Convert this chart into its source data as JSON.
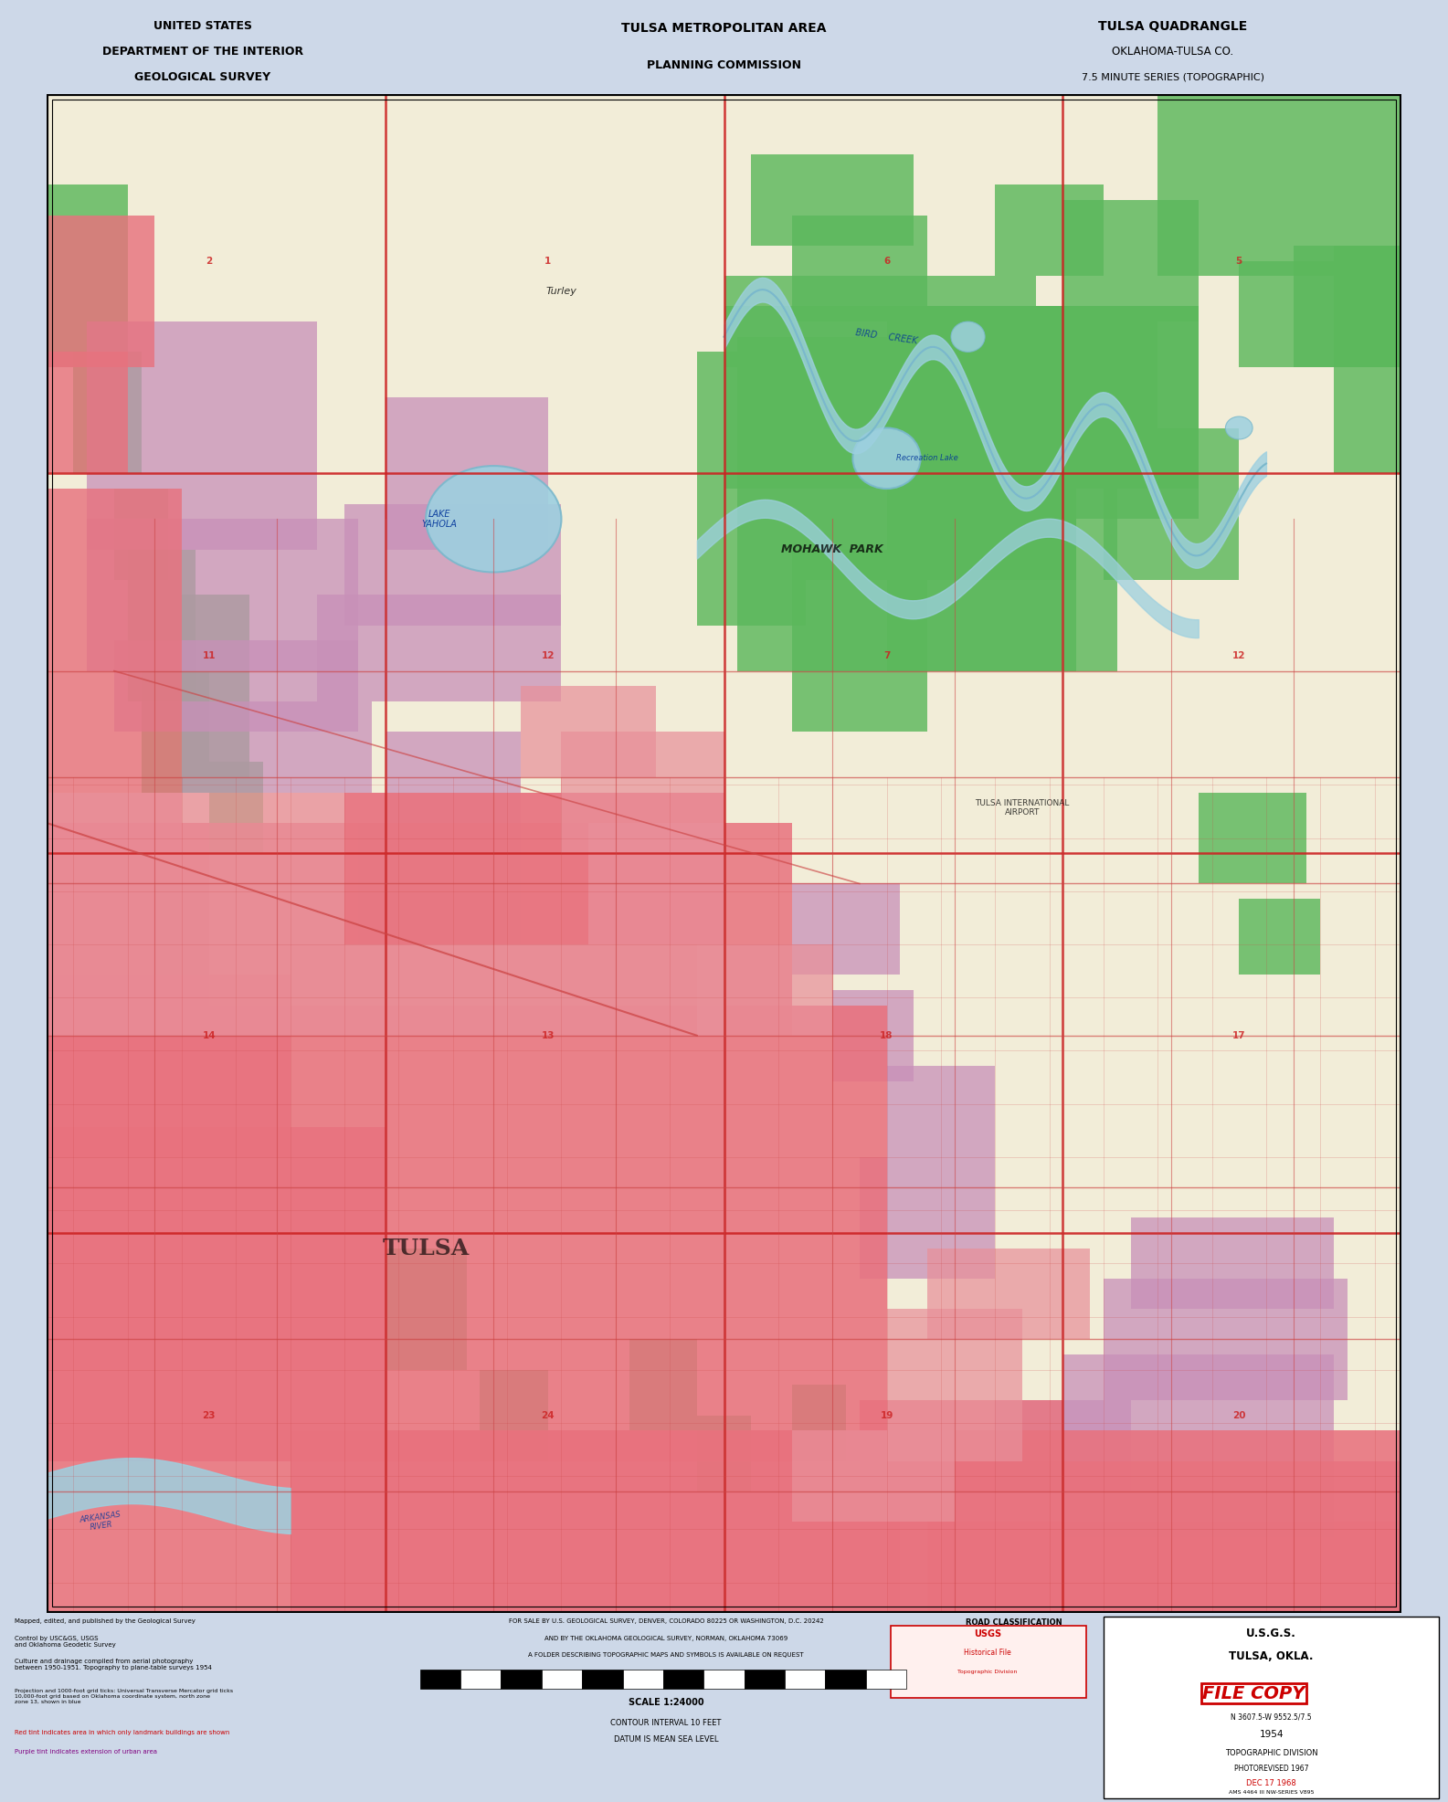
{
  "title_left_line1": "UNITED STATES",
  "title_left_line2": "DEPARTMENT OF THE INTERIOR",
  "title_left_line3": "GEOLOGICAL SURVEY",
  "title_center_line1": "TULSA METROPOLITAN AREA",
  "title_center_line2": "PLANNING COMMISSION",
  "title_right_line1": "TULSA QUADRANGLE",
  "title_right_line2": "OKLAHOMA-TULSA CO.",
  "title_right_line3": "7.5 MINUTE SERIES (TOPOGRAPHIC)",
  "map_bg": "#f2edd8",
  "urban_red": "#e8727e",
  "urban_pink": "#e8909a",
  "urban_purple": "#c890b8",
  "urban_lt_purple": "#d8a8c8",
  "park_green": "#5cb85c",
  "water_blue": "#9dd0e0",
  "water_dark": "#7ab8cc",
  "creek_blue": "#88c0d0",
  "grid_red": "#cc2222",
  "road_red": "#cc4444",
  "outer_bg": "#cdd8e8",
  "bottom_bg": "#f2edd8",
  "stamp_red": "#cc0000",
  "figure_width": 15.85,
  "figure_height": 19.73,
  "map_l": 0.032,
  "map_r": 0.968,
  "map_t": 0.948,
  "map_b": 0.105,
  "bottom_text_1": "FOR SALE BY U.S. GEOLOGICAL SURVEY, DENVER, COLORADO 80225 OR WASHINGTON, D.C. 20242",
  "bottom_text_2": "AND BY THE OKLAHOMA GEOLOGICAL SURVEY, NORMAN, OKLAHOMA 73069",
  "bottom_text_3": "A FOLDER DESCRIBING TOPOGRAPHIC MAPS AND SYMBOLS IS AVAILABLE ON REQUEST",
  "scale_label": "SCALE 1:24000",
  "contour_label": "CONTOUR INTERVAL 10 FEET",
  "datum_label": "DATUM IS MEAN SEA LEVEL",
  "usgs_label": "U.S.G.S.",
  "city_label": "TULSA, OKLA.",
  "series_label": "N 3607.5-W 9552.5/7.5",
  "year_label": "1954",
  "topo_div_label": "TOPOGRAPHIC DIVISION",
  "photorevised_label": "PHOTOREVISED 1967",
  "file_copy_label": "FILE COPY",
  "dec_label": "DEC 17 1968",
  "ams_label": "AMS 4464 III NW-SERIES V895",
  "road_class_label": "ROAD CLASSIFICATION"
}
